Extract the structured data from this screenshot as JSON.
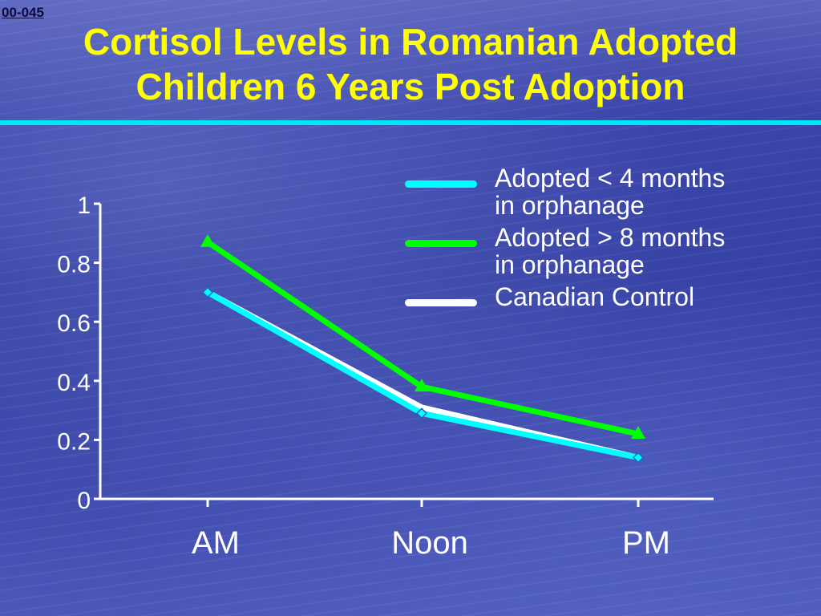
{
  "slide": {
    "code": "00-045",
    "title_lines": [
      "Cortisol Levels in Romanian Adopted",
      "Children 6 Years Post Adoption"
    ]
  },
  "chart_data": {
    "type": "line",
    "categories": [
      "AM",
      "Noon",
      "PM"
    ],
    "ylim": [
      0,
      1
    ],
    "yticks": [
      "0",
      "0.2",
      "0.4",
      "0.6",
      "0.8",
      "1"
    ],
    "grid": false,
    "legend_position": "top-right",
    "series": [
      {
        "name": "Adopted < 4 months in orphanage",
        "label_lines": [
          "Adopted < 4 months",
          "in orphanage"
        ],
        "values": [
          0.7,
          0.29,
          0.14
        ],
        "color": "#00ffff",
        "marker": "diamond"
      },
      {
        "name": "Adopted > 8 months in orphanage",
        "label_lines": [
          "Adopted > 8 months",
          "in orphanage"
        ],
        "values": [
          0.87,
          0.38,
          0.22
        ],
        "color": "#00ff00",
        "marker": "triangle"
      },
      {
        "name": "Canadian Control",
        "label_lines": [
          "Canadian Control"
        ],
        "values": [
          0.7,
          0.31,
          0.14
        ],
        "color": "#ffffff",
        "marker": "none"
      }
    ]
  }
}
